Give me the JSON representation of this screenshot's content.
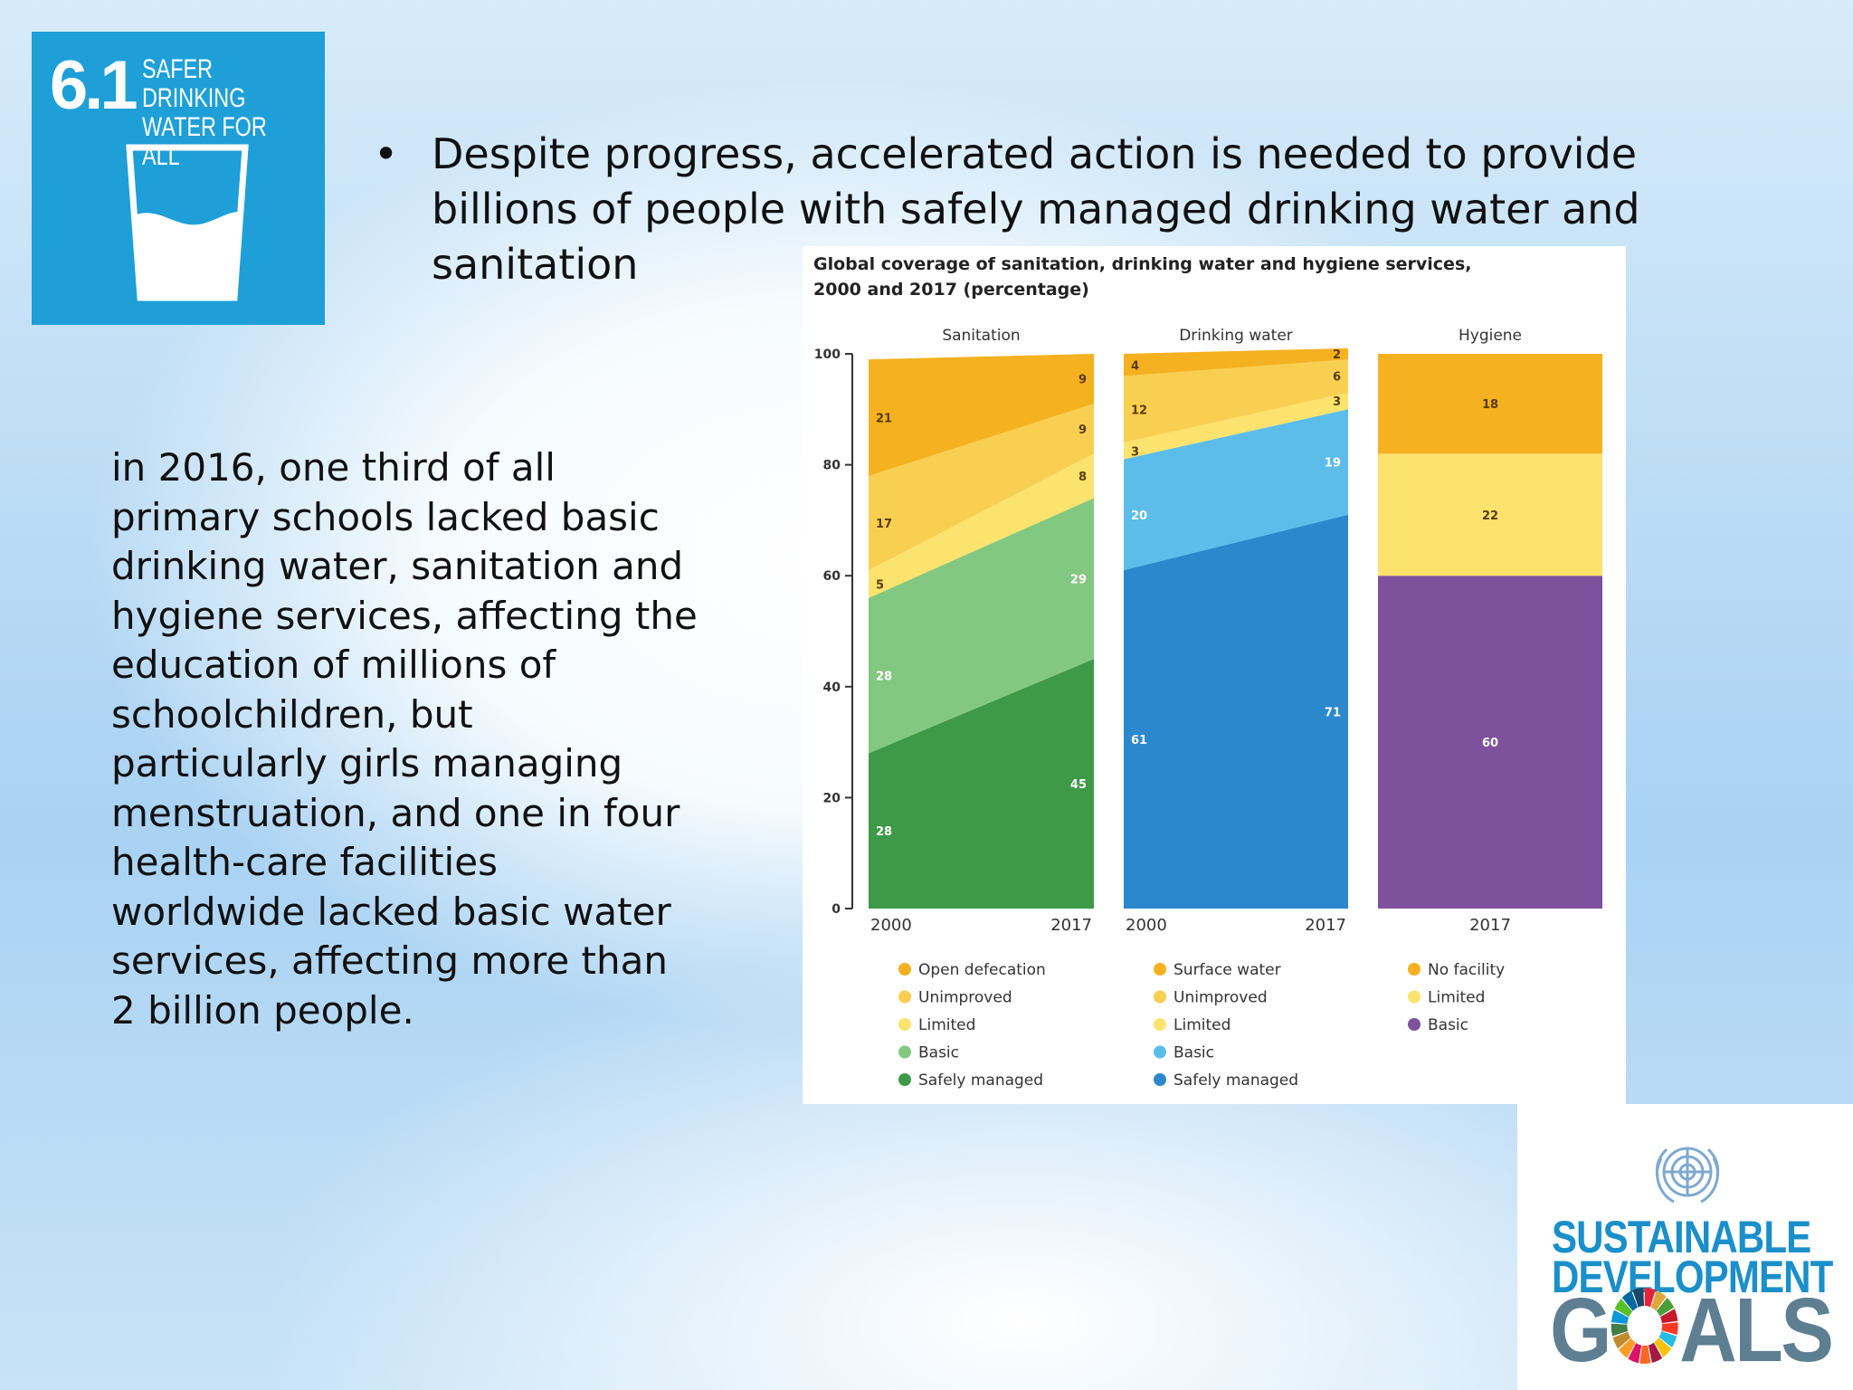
{
  "tile": {
    "number": "6.1",
    "title_line1": "SAFER DRINKING",
    "title_line2": "WATER FOR ALL",
    "icon": "water-glass-icon",
    "color": "#1e9fd8"
  },
  "bullet": {
    "symbol": "•",
    "text": "Despite progress, accelerated action is needed to provide billions of people with safely managed drinking water and sanitation"
  },
  "side_text": "in 2016, one third of all primary schools lacked basic drinking water, sanitation and hygiene services, affecting the education of millions of schoolchildren, but particularly girls managing menstruation, and one in four health-care facilities worldwide lacked basic water services, affecting more than 2 billion people.",
  "chart_data": {
    "type": "area",
    "title_line1": "Global coverage of sanitation, drinking water and hygiene services,",
    "title_line2": "2000 and 2017 (percentage)",
    "ylim": [
      0,
      100
    ],
    "yticks": [
      "0",
      "20",
      "40",
      "60",
      "80",
      "100"
    ],
    "panels": [
      {
        "name": "Sanitation",
        "x": [
          "2000",
          "2017"
        ],
        "series": [
          {
            "name": "Safely managed",
            "color": "#3e9a47",
            "values": [
              28,
              45
            ]
          },
          {
            "name": "Basic",
            "color": "#83c880",
            "values": [
              28,
              29
            ]
          },
          {
            "name": "Limited",
            "color": "#fbe36d",
            "values": [
              5,
              8
            ]
          },
          {
            "name": "Unimproved",
            "color": "#f9cf52",
            "values": [
              17,
              9
            ]
          },
          {
            "name": "Open defecation",
            "color": "#f5b11f",
            "values": [
              21,
              9
            ]
          }
        ]
      },
      {
        "name": "Drinking water",
        "x": [
          "2000",
          "2017"
        ],
        "series": [
          {
            "name": "Safely managed",
            "color": "#2b88cc",
            "values": [
              61,
              71
            ]
          },
          {
            "name": "Basic",
            "color": "#5cbdea",
            "values": [
              20,
              19
            ]
          },
          {
            "name": "Limited",
            "color": "#fbe36d",
            "values": [
              3,
              3
            ]
          },
          {
            "name": "Unimproved",
            "color": "#f9cf52",
            "values": [
              12,
              6
            ]
          },
          {
            "name": "Surface water",
            "color": "#f5b11f",
            "values": [
              4,
              2
            ]
          }
        ]
      },
      {
        "name": "Hygiene",
        "x": [
          "2017"
        ],
        "series": [
          {
            "name": "Basic",
            "color": "#7e519d",
            "values": [
              60
            ]
          },
          {
            "name": "Limited",
            "color": "#fbe36d",
            "values": [
              22
            ]
          },
          {
            "name": "No facility",
            "color": "#f5b11f",
            "values": [
              18
            ]
          }
        ]
      }
    ]
  },
  "sdg_logo": {
    "line1": "SUSTAINABLE",
    "line2": "DEVELOPMENT",
    "goals_g": "G",
    "goals_rest": "ALS",
    "emblem": "un-emblem-icon",
    "wheel": "sdg-color-wheel-icon",
    "blue": "#1a8fc9",
    "gray": "#5e7f92"
  }
}
